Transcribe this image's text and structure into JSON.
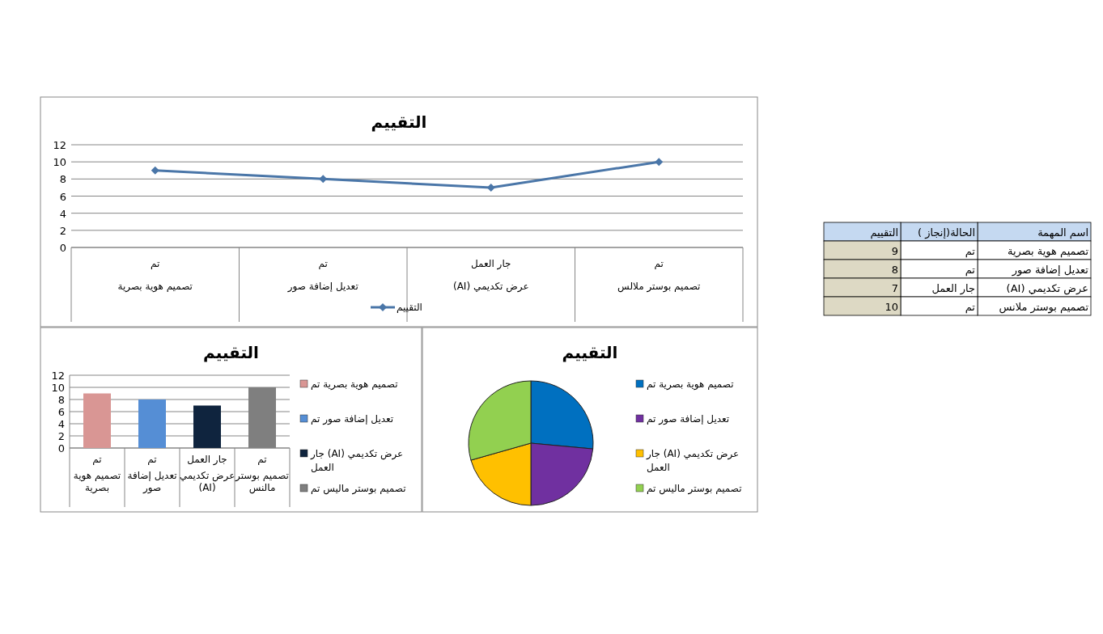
{
  "chart_data": [
    {
      "type": "line",
      "title": "التقييم",
      "categories": [
        "تم\nتصميم هوية بصرية",
        "تم\nتعديل إضافة صور",
        "جار العمل\nعرض تكديمي (AI)",
        "تم\nتصميم بوستر ملالس"
      ],
      "series": [
        {
          "name": "التقييم",
          "color": "#4a76a8",
          "values": [
            9,
            8,
            7,
            10
          ]
        }
      ],
      "ylim": [
        0,
        12
      ],
      "yticks": [
        0,
        2,
        4,
        6,
        8,
        10,
        12
      ],
      "grid": "y",
      "legend": "bottom",
      "marker": "diamond"
    },
    {
      "type": "bar",
      "title": "التقييم",
      "categories": [
        "تم\nتصميم هوية بصرية",
        "تم\nتعديل إضافة صور",
        "جار العمل\nعرض تكديمي (AI)",
        "تم\nتصميم بوستر مالنس"
      ],
      "series": [
        {
          "name": "تصميم هوية بصرية تم",
          "color": "#d99694",
          "values": [
            9,
            null,
            null,
            null
          ]
        },
        {
          "name": "تعديل إضافة صور تم",
          "color": "#558ed5",
          "values": [
            null,
            8,
            null,
            null
          ]
        },
        {
          "name": "عرض تكديمي (AI) جار العمل",
          "color": "#0f243e",
          "values": [
            null,
            null,
            7,
            null
          ]
        },
        {
          "name": "تصميم بوستر ماليس  تم",
          "color": "#7f7f7f",
          "values": [
            null,
            null,
            null,
            10
          ]
        }
      ],
      "ylim": [
        0,
        12
      ],
      "yticks": [
        0,
        2,
        4,
        6,
        8,
        10,
        12
      ],
      "grid": "y",
      "legend": "right"
    },
    {
      "type": "pie",
      "title": "التقييم",
      "categories": [
        "تصميم هوية بصرية تم",
        "تعديل إضافة صور تم",
        "عرض تكديمي (AI) جار العمل",
        "تصميم بوستر ماليس  تم"
      ],
      "values": [
        26.47,
        23.53,
        20.59,
        29.41
      ],
      "colors": [
        "#0070c0",
        "#7030a0",
        "#ffc000",
        "#92d050"
      ],
      "legend": "right"
    },
    {
      "type": "other",
      "annotations": [
        "اسم المهمة",
        "الحالة(إنجاز )",
        "التقييم",
        "تصميم هوية بصرية",
        "تم",
        "9",
        "تعديل إضافة صور",
        "تم",
        "8",
        "عرض تكديمي (AI)",
        "جار العمل",
        "7",
        "تصميم بوستر ملانس",
        "تم",
        "10"
      ]
    }
  ]
}
